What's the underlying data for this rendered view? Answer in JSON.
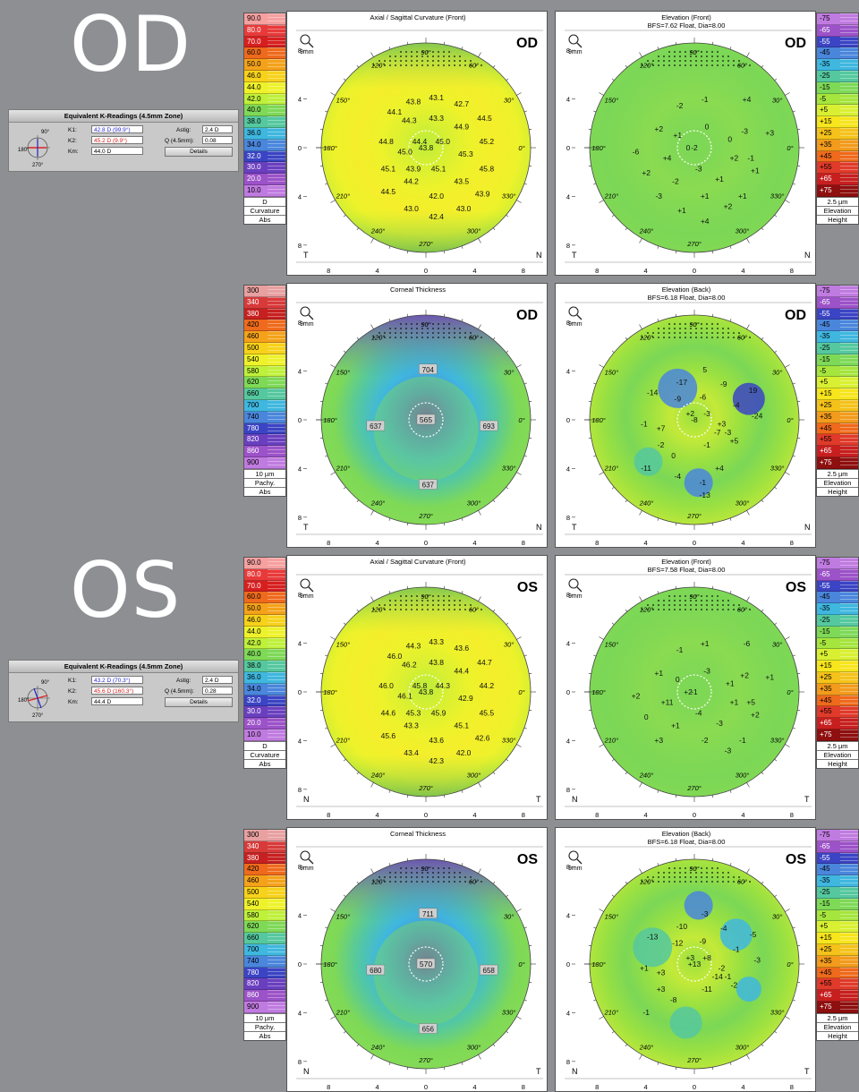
{
  "od_label": "OD",
  "os_label": "OS",
  "k_panels": [
    {
      "title": "Equivalent K-Readings (4.5mm Zone)",
      "k1_label": "K1:",
      "k1": "42.8 D  (99.9°)",
      "k2_label": "K2:",
      "k2": "45.2 D  (9.9°)",
      "km_label": "Km:",
      "km": "44.0 D",
      "astig_label": "Astig:",
      "astig": "2.4 D",
      "q_label": "Q (4.5mm):",
      "q": "0.08",
      "details": "Details",
      "compass": [
        "90°",
        "180°",
        "270°"
      ]
    },
    {
      "title": "Equivalent K-Readings (4.5mm Zone)",
      "k1_label": "K1:",
      "k1": "43.2 D  (70.3°)",
      "k2_label": "K2:",
      "k2": "45.6 D  (160.3°)",
      "km_label": "Km:",
      "km": "44.4 D",
      "astig_label": "Astig:",
      "astig": "2.4 D",
      "q_label": "Q (4.5mm):",
      "q": "0.28",
      "details": "Details",
      "compass": [
        "90°",
        "180°",
        "270°"
      ]
    }
  ],
  "scales": {
    "curvature": {
      "values": [
        "90.0",
        "80.0",
        "70.0",
        "60.0",
        "50.0",
        "46.0",
        "44.0",
        "42.0",
        "40.0",
        "38.0",
        "36.0",
        "34.0",
        "32.0",
        "30.0",
        "20.0",
        "10.0"
      ],
      "colors": [
        "#f6a0a0",
        "#e83a3a",
        "#d71f1f",
        "#ef6a1c",
        "#f4a21a",
        "#f7d21b",
        "#eef22a",
        "#bff03a",
        "#7ed957",
        "#55c89f",
        "#3fb7df",
        "#4a86dc",
        "#3b44c4",
        "#6a3fbf",
        "#9c52c8",
        "#c07be0"
      ],
      "footer": [
        "D",
        "Curvature",
        "Abs"
      ]
    },
    "pachy": {
      "values": [
        "300",
        "340",
        "380",
        "420",
        "460",
        "500",
        "540",
        "580",
        "620",
        "660",
        "700",
        "740",
        "780",
        "820",
        "860",
        "900"
      ],
      "colors": [
        "#e8a0a0",
        "#d83a3a",
        "#c72020",
        "#ef6a1c",
        "#f4a21a",
        "#f7d21b",
        "#eef22a",
        "#bff03a",
        "#7ed957",
        "#55c89f",
        "#3fb7df",
        "#4a86dc",
        "#3b44c4",
        "#6a3fbf",
        "#9c52c8",
        "#c07be0"
      ],
      "footer": [
        "10 µm",
        "Pachy.",
        "Abs"
      ]
    },
    "elevation": {
      "values": [
        "-75",
        "-65",
        "-55",
        "-45",
        "-35",
        "-25",
        "-15",
        "-5",
        "+5",
        "+15",
        "+25",
        "+35",
        "+45",
        "+55",
        "+65",
        "+75"
      ],
      "colors": [
        "#c07be0",
        "#9c52c8",
        "#3b44c4",
        "#4a86dc",
        "#3fb7df",
        "#55c89f",
        "#7ed957",
        "#a5e53d",
        "#d9f032",
        "#f7e51d",
        "#f4c21a",
        "#f29b1c",
        "#ef6a1c",
        "#e03a2a",
        "#c71f1f",
        "#8e0f0f"
      ],
      "footer": [
        "2.5 µm",
        "Elevation",
        "Height"
      ]
    }
  },
  "maps": [
    {
      "title": "Axial / Sagittal Curvature (Front)",
      "subtitle": "",
      "eye": "OD",
      "type": "curv",
      "left": "T",
      "right": "N",
      "center": {
        "label": "43.8"
      },
      "labels": [
        "43.1",
        "43.8",
        "42.7",
        "44.1",
        "44.3",
        "43.3",
        "44.9",
        "44.5",
        "44.8",
        "44.4",
        "45.0",
        "45.2",
        "45.0",
        "45.3",
        "45.1",
        "43.9",
        "45.1",
        "45.8",
        "44.2",
        "43.5",
        "44.5",
        "42.0",
        "43.9",
        "43.0",
        "42.4",
        "43.0"
      ]
    },
    {
      "title": "Elevation (Front)",
      "subtitle": "BFS=7.62 Float, Dia=8.00",
      "eye": "OD",
      "type": "elev",
      "left": "T",
      "right": "N",
      "center": {
        "label": "-2"
      },
      "labels": [
        "-1",
        "+4",
        "-2",
        "+2",
        "+1",
        "0",
        "-3",
        "0",
        "+3",
        "-6",
        "+4",
        "0",
        "-1",
        "-3",
        "+2",
        "+2",
        "+1",
        "-2",
        "+1",
        "-3",
        "+1",
        "+1",
        "+2",
        "+1",
        "+4"
      ]
    },
    {
      "title": "Corneal Thickness",
      "subtitle": "",
      "eye": "OD",
      "type": "pachy",
      "left": "T",
      "right": "N",
      "center": {
        "label": "565"
      },
      "labels": [
        "704",
        "637",
        "693",
        "637"
      ]
    },
    {
      "title": "Elevation (Back)",
      "subtitle": "BFS=6.18 Float, Dia=8.00",
      "eye": "OD",
      "type": "elevb",
      "left": "T",
      "right": "N",
      "center": {
        "label": "-8"
      },
      "labels": [
        "5",
        "-17",
        "-9",
        "-14",
        "-9",
        "-6",
        "19",
        "-4",
        "-24",
        "-1",
        "+2",
        "-3",
        "+7",
        "+3",
        "-3",
        "-2",
        "-7",
        "+5",
        "-1",
        "0",
        "-11",
        "-4",
        "+4",
        "-1",
        "-13"
      ]
    },
    {
      "title": "Axial / Sagittal Curvature (Front)",
      "subtitle": "",
      "eye": "OS",
      "type": "curv",
      "left": "N",
      "right": "T",
      "center": {
        "label": "43.8"
      },
      "labels": [
        "43.3",
        "44.3",
        "43.6",
        "46.0",
        "46.2",
        "43.8",
        "44.4",
        "44.7",
        "46.0",
        "45.8",
        "44.3",
        "44.2",
        "46.1",
        "42.9",
        "44.6",
        "45.3",
        "45.9",
        "45.5",
        "43.3",
        "45.1",
        "45.6",
        "43.6",
        "42.6",
        "43.4",
        "42.3",
        "42.0"
      ]
    },
    {
      "title": "Elevation (Front)",
      "subtitle": "BFS=7.58 Float, Dia=8.00",
      "eye": "OS",
      "type": "elev",
      "left": "N",
      "right": "T",
      "center": {
        "label": "-1"
      },
      "labels": [
        "+1",
        "-6",
        "-1",
        "+1",
        "0",
        "-3",
        "+2",
        "+1",
        "+1",
        "+2",
        "+11",
        "+2",
        "+5",
        "-4",
        "+1",
        "0",
        "+2",
        "+1",
        "-3",
        "+3",
        "-2",
        "-1",
        "-3"
      ]
    },
    {
      "title": "Corneal Thickness",
      "subtitle": "",
      "eye": "OS",
      "type": "pachy",
      "left": "N",
      "right": "T",
      "center": {
        "label": "570"
      },
      "labels": [
        "711",
        "680",
        "658",
        "656"
      ]
    },
    {
      "title": "Elevation (Back)",
      "subtitle": "BFS=6.18 Float, Dia=8.00",
      "eye": "OS",
      "type": "elevb",
      "left": "N",
      "right": "T",
      "center": {
        "label": "+13"
      },
      "labels": [
        "-3",
        "-10",
        "-4",
        "-13",
        "-12",
        "-9",
        "-5",
        "-1",
        "-3",
        "+1",
        "+3",
        "+8",
        "+3",
        "-2",
        "-1",
        "+3",
        "-14",
        "-2",
        "-11",
        "-8",
        "-1"
      ]
    }
  ],
  "axis_ticks": [
    "8",
    "4",
    "0",
    "4",
    "8"
  ],
  "angle_labels": [
    "90°",
    "60°",
    "30°",
    "0°",
    "330°",
    "300°",
    "270°",
    "240°",
    "210°",
    "180°",
    "150°",
    "120°"
  ],
  "mag_label": "9mm"
}
